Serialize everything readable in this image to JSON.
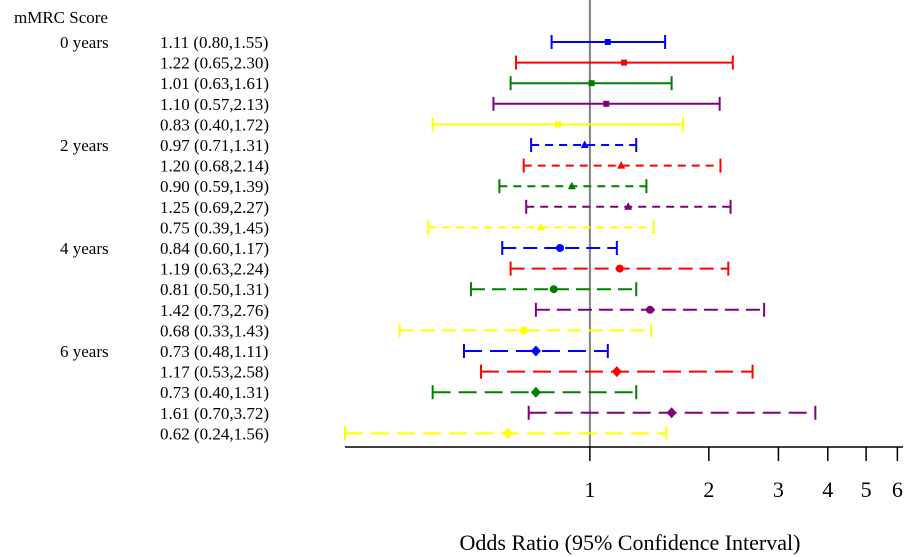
{
  "chart_data": {
    "type": "scatter",
    "subtype": "forest-plot",
    "column_header": "mMRC Score",
    "xlabel": "Odds Ratio (95%  Confidence Interval)",
    "x_scale": "log",
    "x_ticks": [
      1,
      2,
      3,
      4,
      5,
      6
    ],
    "xlim": [
      0.24,
      6.2
    ],
    "reference_line": 1,
    "groups": [
      {
        "label": "0 years",
        "line_style": "solid",
        "marker": "square",
        "rows": [
          {
            "ci_text": "1.11 (0.80,1.55)",
            "or": 1.11,
            "lo": 0.8,
            "hi": 1.55,
            "color": "#0000ff"
          },
          {
            "ci_text": "1.22 (0.65,2.30)",
            "or": 1.22,
            "lo": 0.65,
            "hi": 2.3,
            "color": "#ff0000"
          },
          {
            "ci_text": "1.01 (0.63,1.61)",
            "or": 1.01,
            "lo": 0.63,
            "hi": 1.61,
            "color": "#008000"
          },
          {
            "ci_text": "1.10 (0.57,2.13)",
            "or": 1.1,
            "lo": 0.57,
            "hi": 2.13,
            "color": "#800080"
          },
          {
            "ci_text": "0.83 (0.40,1.72)",
            "or": 0.83,
            "lo": 0.4,
            "hi": 1.72,
            "color": "#ffff00"
          }
        ]
      },
      {
        "label": "2 years",
        "line_style": "dashed-short",
        "marker": "triangle",
        "rows": [
          {
            "ci_text": "0.97 (0.71,1.31)",
            "or": 0.97,
            "lo": 0.71,
            "hi": 1.31,
            "color": "#0000ff"
          },
          {
            "ci_text": "1.20 (0.68,2.14)",
            "or": 1.2,
            "lo": 0.68,
            "hi": 2.14,
            "color": "#ff0000"
          },
          {
            "ci_text": "0.90 (0.59,1.39)",
            "or": 0.9,
            "lo": 0.59,
            "hi": 1.39,
            "color": "#008000"
          },
          {
            "ci_text": "1.25 (0.69,2.27)",
            "or": 1.25,
            "lo": 0.69,
            "hi": 2.27,
            "color": "#800080"
          },
          {
            "ci_text": "0.75 (0.39,1.45)",
            "or": 0.75,
            "lo": 0.39,
            "hi": 1.45,
            "color": "#ffff00"
          }
        ]
      },
      {
        "label": "4 years",
        "line_style": "dashed-long",
        "marker": "circle",
        "rows": [
          {
            "ci_text": "0.84 (0.60,1.17)",
            "or": 0.84,
            "lo": 0.6,
            "hi": 1.17,
            "color": "#0000ff"
          },
          {
            "ci_text": "1.19 (0.63,2.24)",
            "or": 1.19,
            "lo": 0.63,
            "hi": 2.24,
            "color": "#ff0000"
          },
          {
            "ci_text": "0.81 (0.50,1.31)",
            "or": 0.81,
            "lo": 0.5,
            "hi": 1.31,
            "color": "#008000"
          },
          {
            "ci_text": "1.42 (0.73,2.76)",
            "or": 1.42,
            "lo": 0.73,
            "hi": 2.76,
            "color": "#800080"
          },
          {
            "ci_text": "0.68 (0.33,1.43)",
            "or": 0.68,
            "lo": 0.33,
            "hi": 1.43,
            "color": "#ffff00"
          }
        ]
      },
      {
        "label": "6 years",
        "line_style": "dashed-longer",
        "marker": "diamond",
        "rows": [
          {
            "ci_text": "0.73 (0.48,1.11)",
            "or": 0.73,
            "lo": 0.48,
            "hi": 1.11,
            "color": "#0000ff"
          },
          {
            "ci_text": "1.17 (0.53,2.58)",
            "or": 1.17,
            "lo": 0.53,
            "hi": 2.58,
            "color": "#ff0000"
          },
          {
            "ci_text": "0.73 (0.40,1.31)",
            "or": 0.73,
            "lo": 0.4,
            "hi": 1.31,
            "color": "#008000"
          },
          {
            "ci_text": "1.61 (0.70,3.72)",
            "or": 1.61,
            "lo": 0.7,
            "hi": 3.72,
            "color": "#800080"
          },
          {
            "ci_text": "0.62 (0.24,1.56)",
            "or": 0.62,
            "lo": 0.24,
            "hi": 1.56,
            "color": "#ffff00"
          }
        ]
      }
    ]
  }
}
